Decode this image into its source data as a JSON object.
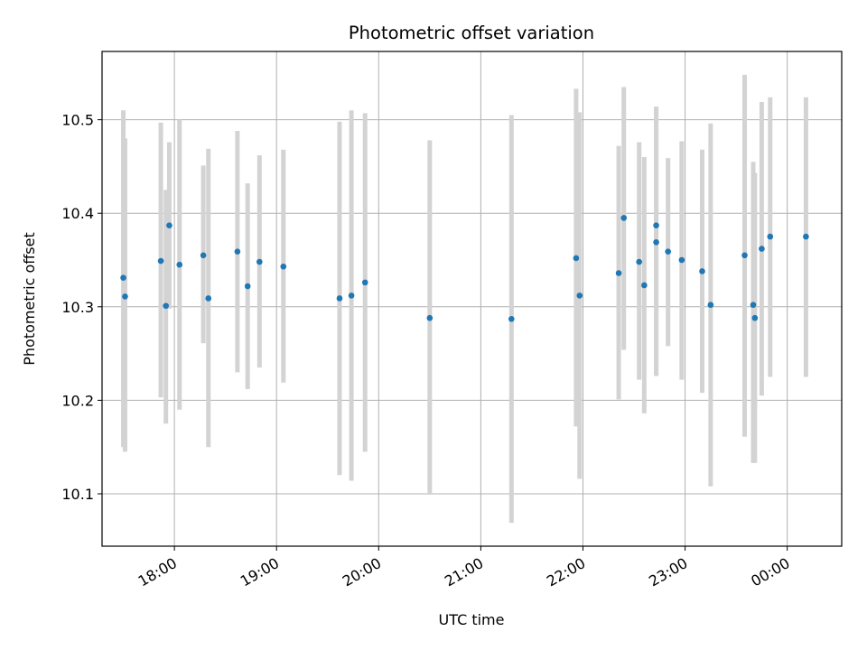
{
  "chart_data": {
    "type": "scatter",
    "title": "Photometric offset variation",
    "xlabel": "UTC time",
    "ylabel": "Photometric offset",
    "x_axis": {
      "unit": "hours (UTC, continuing past midnight)",
      "range": [
        17.2917,
        24.5333
      ],
      "ticks": [
        {
          "value": 18,
          "label": "18:00"
        },
        {
          "value": 19,
          "label": "19:00"
        },
        {
          "value": 20,
          "label": "20:00"
        },
        {
          "value": 21,
          "label": "21:00"
        },
        {
          "value": 22,
          "label": "22:00"
        },
        {
          "value": 23,
          "label": "23:00"
        },
        {
          "value": 24,
          "label": "00:00"
        }
      ]
    },
    "y_axis": {
      "range": [
        10.044,
        10.573
      ],
      "ticks": [
        {
          "value": 10.1,
          "label": "10.1"
        },
        {
          "value": 10.2,
          "label": "10.2"
        },
        {
          "value": 10.3,
          "label": "10.3"
        },
        {
          "value": 10.4,
          "label": "10.4"
        },
        {
          "value": 10.5,
          "label": "10.5"
        }
      ]
    },
    "grid": true,
    "colors": {
      "point": "#1f77b4",
      "errorbar": "#d3d3d3",
      "grid": "#b0b0b0"
    },
    "points": [
      {
        "x": 17.5,
        "y": 10.331,
        "err_low": 10.15,
        "err_high": 10.51
      },
      {
        "x": 17.517,
        "y": 10.311,
        "err_low": 10.145,
        "err_high": 10.48
      },
      {
        "x": 17.867,
        "y": 10.349,
        "err_low": 10.203,
        "err_high": 10.497
      },
      {
        "x": 17.917,
        "y": 10.301,
        "err_low": 10.175,
        "err_high": 10.425
      },
      {
        "x": 17.95,
        "y": 10.387,
        "err_low": 10.298,
        "err_high": 10.476
      },
      {
        "x": 18.05,
        "y": 10.345,
        "err_low": 10.19,
        "err_high": 10.5
      },
      {
        "x": 18.283,
        "y": 10.355,
        "err_low": 10.261,
        "err_high": 10.451
      },
      {
        "x": 18.333,
        "y": 10.309,
        "err_low": 10.15,
        "err_high": 10.469
      },
      {
        "x": 18.617,
        "y": 10.359,
        "err_low": 10.23,
        "err_high": 10.488
      },
      {
        "x": 18.717,
        "y": 10.322,
        "err_low": 10.212,
        "err_high": 10.432
      },
      {
        "x": 18.833,
        "y": 10.348,
        "err_low": 10.235,
        "err_high": 10.462
      },
      {
        "x": 19.067,
        "y": 10.343,
        "err_low": 10.219,
        "err_high": 10.468
      },
      {
        "x": 19.617,
        "y": 10.309,
        "err_low": 10.12,
        "err_high": 10.498
      },
      {
        "x": 19.733,
        "y": 10.312,
        "err_low": 10.114,
        "err_high": 10.51
      },
      {
        "x": 19.867,
        "y": 10.326,
        "err_low": 10.145,
        "err_high": 10.507
      },
      {
        "x": 20.5,
        "y": 10.288,
        "err_low": 10.099,
        "err_high": 10.478
      },
      {
        "x": 21.3,
        "y": 10.287,
        "err_low": 10.069,
        "err_high": 10.505
      },
      {
        "x": 21.933,
        "y": 10.352,
        "err_low": 10.172,
        "err_high": 10.533
      },
      {
        "x": 21.967,
        "y": 10.312,
        "err_low": 10.116,
        "err_high": 10.508
      },
      {
        "x": 22.35,
        "y": 10.336,
        "err_low": 10.201,
        "err_high": 10.472
      },
      {
        "x": 22.4,
        "y": 10.395,
        "err_low": 10.254,
        "err_high": 10.535
      },
      {
        "x": 22.55,
        "y": 10.348,
        "err_low": 10.222,
        "err_high": 10.476
      },
      {
        "x": 22.6,
        "y": 10.323,
        "err_low": 10.186,
        "err_high": 10.46
      },
      {
        "x": 22.717,
        "y": 10.387,
        "err_low": 10.226,
        "err_high": 10.514
      },
      {
        "x": 22.717,
        "y": 10.369,
        "err_low": 10.226,
        "err_high": 10.514
      },
      {
        "x": 22.833,
        "y": 10.359,
        "err_low": 10.258,
        "err_high": 10.459
      },
      {
        "x": 22.967,
        "y": 10.35,
        "err_low": 10.222,
        "err_high": 10.477
      },
      {
        "x": 23.167,
        "y": 10.338,
        "err_low": 10.208,
        "err_high": 10.468
      },
      {
        "x": 23.25,
        "y": 10.302,
        "err_low": 10.108,
        "err_high": 10.496
      },
      {
        "x": 23.583,
        "y": 10.355,
        "err_low": 10.161,
        "err_high": 10.548
      },
      {
        "x": 23.667,
        "y": 10.302,
        "err_low": 10.133,
        "err_high": 10.455
      },
      {
        "x": 23.683,
        "y": 10.288,
        "err_low": 10.133,
        "err_high": 10.443
      },
      {
        "x": 23.75,
        "y": 10.362,
        "err_low": 10.205,
        "err_high": 10.519
      },
      {
        "x": 23.833,
        "y": 10.375,
        "err_low": 10.225,
        "err_high": 10.524
      },
      {
        "x": 24.183,
        "y": 10.375,
        "err_low": 10.225,
        "err_high": 10.524
      }
    ]
  }
}
